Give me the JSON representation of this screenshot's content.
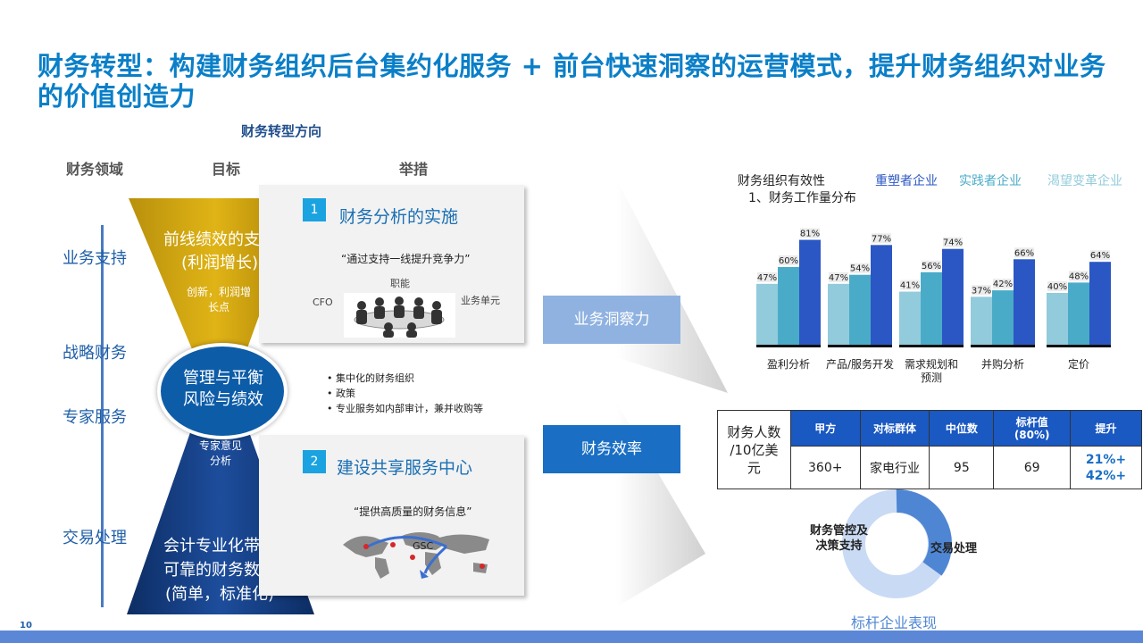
{
  "title": "财务转型：构建财务组织后台集约化服务 + 前台快速洞察的运营模式，提升财务组织对业务的价值创造力",
  "subtitle": "财务转型方向",
  "column_headers": {
    "domain": "财务领域",
    "goal": "目标",
    "measures": "举措"
  },
  "domains": [
    "业务支持",
    "战略财务",
    "专家服务",
    "交易处理"
  ],
  "funnel": {
    "top_main": "前线绩效的支持\n(利润增长)",
    "top_sub": "创新，利润增\n长点",
    "center": "管理与平衡\n风险与绩效",
    "bottom_sub": "专家意见\n分析",
    "bottom_main": "会计专业化带来\n可靠的财务数据\n(简单，标准化)"
  },
  "panel1": {
    "number": "1",
    "title": "财务分析的实施",
    "quote": "“通过支持一线提升竞争力”",
    "label_function": "职能",
    "label_cfo": "CFO",
    "label_bu": "业务单元"
  },
  "bullets": [
    "集中化的财务组织",
    "政策",
    "专业服务如内部审计，兼并收购等"
  ],
  "panel2": {
    "number": "2",
    "title": "建设共享服务中心",
    "quote": "“提供高质量的财务信息”",
    "map_label": "GSC"
  },
  "arrow_boxes": {
    "insight": "业务洞察力",
    "efficiency": "财务效率"
  },
  "chart_data": {
    "type": "bar",
    "title": "财务组织有效性",
    "subtitle": "1、财务工作量分布",
    "categories": [
      "盈利分析",
      "产品/服务开发",
      "需求规划和预测",
      "并购分析",
      "定价"
    ],
    "series": [
      {
        "name": "重塑者企业",
        "values": [
          81,
          77,
          74,
          66,
          64
        ],
        "color": "#2b57c4"
      },
      {
        "name": "实践者企业",
        "values": [
          60,
          54,
          56,
          42,
          48
        ],
        "color": "#4aabc8"
      },
      {
        "name": "渴望变革企业",
        "values": [
          47,
          47,
          41,
          37,
          40
        ],
        "color": "#92cbdc"
      }
    ],
    "unit": "%",
    "legend": "top"
  },
  "benchmark_table": {
    "row_header": "财务人数\n/10亿美\n元",
    "columns": [
      "甲方",
      "对标群体",
      "中位数",
      "标杆值\n(80%)",
      "提升"
    ],
    "values": [
      "360+",
      "家电行业",
      "95",
      "69",
      "21%+\n42%+"
    ]
  },
  "donut": {
    "label_left": "财务管控及\n决策支持",
    "label_right": "交易处理",
    "caption": "标杆企业表现",
    "colors": {
      "major": "#c9daf4",
      "minor": "#4f86d4"
    }
  },
  "page_number": "10"
}
